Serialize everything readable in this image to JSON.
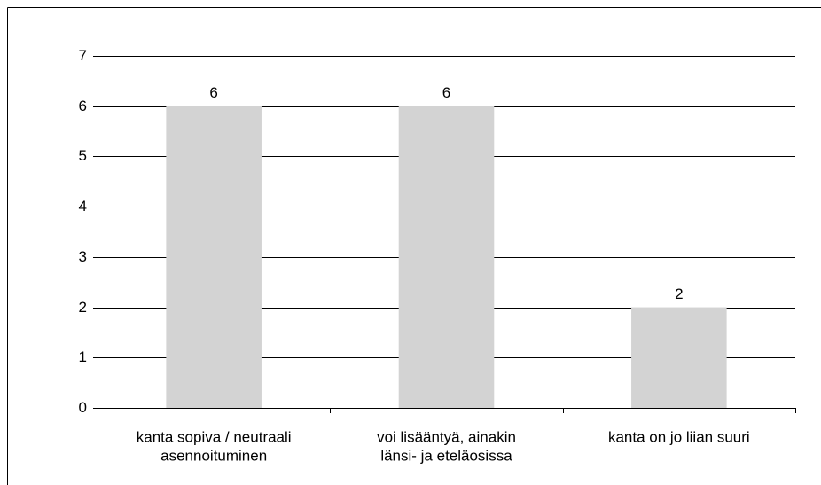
{
  "chart_data": {
    "type": "bar",
    "categories": [
      [
        "kanta sopiva / neutraali",
        "asennoituminen"
      ],
      [
        "voi lisääntyä, ainakin",
        "länsi- ja eteläosissa"
      ],
      [
        "kanta on jo liian suuri"
      ]
    ],
    "values": [
      6,
      6,
      2
    ],
    "color": "#d3d3d3",
    "ylim": [
      0,
      7
    ],
    "yticks": [
      0,
      1,
      2,
      3,
      4,
      5,
      6,
      7
    ],
    "grid": true
  }
}
